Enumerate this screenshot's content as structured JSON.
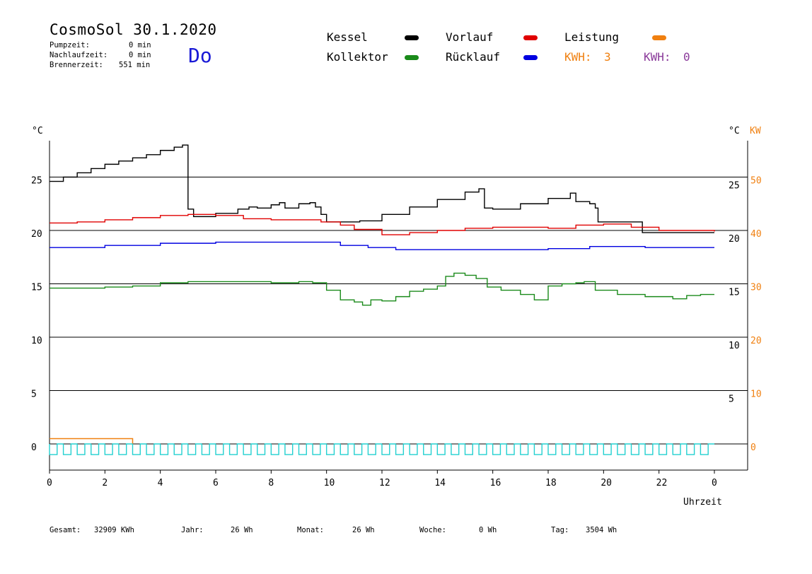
{
  "header": {
    "title": "CosmoSol 30.1.2020",
    "pump_label": "Pumpzeit:",
    "pump_value": "0 min",
    "nachlauf_label": "Nachlaufzeit:",
    "nachlauf_value": "0 min",
    "brenner_label": "Brennerzeit:",
    "brenner_value": "551 min",
    "weekday": "Do"
  },
  "legend": {
    "kessel": "Kessel",
    "kollektor": "Kollektor",
    "vorlauf": "Vorlauf",
    "ruecklauf": "Rücklauf",
    "leistung": "Leistung",
    "kwh1_label": "KWH:",
    "kwh1_value": "3",
    "kwh2_label": "KWH:",
    "kwh2_value": "0",
    "colors": {
      "kessel": "#000000",
      "kollektor": "#1a8a1a",
      "vorlauf": "#e00000",
      "ruecklauf": "#0000e0",
      "leistung": "#f08010",
      "kwh2": "#8a3a9a",
      "pump": "#22d0d0"
    }
  },
  "footer": {
    "gesamt_label": "Gesamt:",
    "gesamt_value": "32909 KWh",
    "jahr_label": "Jahr:",
    "jahr_value": "26 Wh",
    "monat_label": "Monat:",
    "monat_value": "26 Wh",
    "woche_label": "Woche:",
    "woche_value": "0 Wh",
    "tag_label": "Tag:",
    "tag_value": "3504 Wh"
  },
  "chart_data": {
    "type": "line",
    "ylabel_left": "°C",
    "ylabel_right": "°C",
    "ylabel_right2": "KW",
    "xlabel": "Uhrzeit",
    "xlim": [
      0,
      24
    ],
    "ylim": [
      -2,
      30
    ],
    "x_ticks": [
      "0",
      "2",
      "4",
      "6",
      "8",
      "10",
      "12",
      "14",
      "16",
      "18",
      "20",
      "22",
      "0"
    ],
    "y_ticks_left": [
      0,
      5,
      10,
      15,
      20,
      25
    ],
    "y_ticks_right": [
      5,
      10,
      15,
      20,
      25
    ],
    "kw_ticks": [
      0,
      10,
      20,
      30,
      40,
      50
    ],
    "grid": "horizontal",
    "series": [
      {
        "name": "Kessel",
        "color": "#000000",
        "points": [
          [
            0,
            24.6
          ],
          [
            0.5,
            25.0
          ],
          [
            1,
            25.4
          ],
          [
            1.5,
            25.8
          ],
          [
            2,
            26.2
          ],
          [
            2.5,
            26.5
          ],
          [
            3,
            26.8
          ],
          [
            3.5,
            27.1
          ],
          [
            4,
            27.5
          ],
          [
            4.5,
            27.8
          ],
          [
            4.8,
            28.0
          ],
          [
            5.0,
            22.0
          ],
          [
            5.2,
            21.3
          ],
          [
            6,
            21.6
          ],
          [
            6.8,
            22.0
          ],
          [
            7.2,
            22.2
          ],
          [
            7.5,
            22.1
          ],
          [
            8,
            22.4
          ],
          [
            8.3,
            22.6
          ],
          [
            8.5,
            22.1
          ],
          [
            9,
            22.5
          ],
          [
            9.4,
            22.6
          ],
          [
            9.6,
            22.2
          ],
          [
            9.8,
            21.5
          ],
          [
            10,
            20.8
          ],
          [
            11,
            20.8
          ],
          [
            11.2,
            20.9
          ],
          [
            12,
            21.5
          ],
          [
            13,
            22.2
          ],
          [
            14,
            22.9
          ],
          [
            15,
            23.6
          ],
          [
            15.5,
            23.9
          ],
          [
            15.7,
            22.1
          ],
          [
            16,
            22.0
          ],
          [
            17,
            22.5
          ],
          [
            18,
            23.0
          ],
          [
            18.8,
            23.5
          ],
          [
            19.0,
            22.7
          ],
          [
            19.5,
            22.5
          ],
          [
            19.7,
            22.1
          ],
          [
            19.8,
            20.8
          ],
          [
            21.2,
            20.8
          ],
          [
            21.4,
            19.8
          ],
          [
            24,
            19.8
          ]
        ]
      },
      {
        "name": "Vorlauf",
        "color": "#e00000",
        "points": [
          [
            0,
            20.7
          ],
          [
            1,
            20.8
          ],
          [
            2,
            21.0
          ],
          [
            3,
            21.2
          ],
          [
            4,
            21.4
          ],
          [
            5,
            21.5
          ],
          [
            6,
            21.4
          ],
          [
            7,
            21.1
          ],
          [
            8,
            21.0
          ],
          [
            9,
            21.0
          ],
          [
            9.8,
            20.8
          ],
          [
            10.5,
            20.5
          ],
          [
            11,
            20.1
          ],
          [
            12,
            19.6
          ],
          [
            13,
            19.8
          ],
          [
            14,
            20.0
          ],
          [
            15,
            20.2
          ],
          [
            16,
            20.3
          ],
          [
            17,
            20.3
          ],
          [
            18,
            20.2
          ],
          [
            19,
            20.5
          ],
          [
            20,
            20.6
          ],
          [
            21,
            20.3
          ],
          [
            22,
            20.0
          ],
          [
            24,
            19.9
          ]
        ]
      },
      {
        "name": "Rücklauf",
        "color": "#0000e0",
        "points": [
          [
            0,
            18.4
          ],
          [
            2,
            18.6
          ],
          [
            4,
            18.8
          ],
          [
            6,
            18.9
          ],
          [
            8,
            18.9
          ],
          [
            9.5,
            18.9
          ],
          [
            10.5,
            18.6
          ],
          [
            11.5,
            18.4
          ],
          [
            12.5,
            18.2
          ],
          [
            14,
            18.2
          ],
          [
            16,
            18.2
          ],
          [
            18,
            18.3
          ],
          [
            19.5,
            18.5
          ],
          [
            20.5,
            18.5
          ],
          [
            21.5,
            18.4
          ],
          [
            24,
            18.4
          ]
        ]
      },
      {
        "name": "Kollektor",
        "color": "#1a8a1a",
        "points": [
          [
            0,
            14.6
          ],
          [
            1,
            14.6
          ],
          [
            2,
            14.7
          ],
          [
            3,
            14.8
          ],
          [
            4,
            15.1
          ],
          [
            5,
            15.2
          ],
          [
            6,
            15.2
          ],
          [
            7,
            15.2
          ],
          [
            8,
            15.1
          ],
          [
            9,
            15.2
          ],
          [
            9.5,
            15.1
          ],
          [
            10,
            14.4
          ],
          [
            10.5,
            13.5
          ],
          [
            11,
            13.3
          ],
          [
            11.3,
            13.0
          ],
          [
            11.6,
            13.5
          ],
          [
            12,
            13.4
          ],
          [
            12.5,
            13.8
          ],
          [
            13,
            14.3
          ],
          [
            13.5,
            14.5
          ],
          [
            14,
            14.8
          ],
          [
            14.3,
            15.7
          ],
          [
            14.6,
            16.0
          ],
          [
            15,
            15.8
          ],
          [
            15.4,
            15.5
          ],
          [
            15.8,
            14.7
          ],
          [
            16.3,
            14.4
          ],
          [
            17,
            14.0
          ],
          [
            17.5,
            13.5
          ],
          [
            18,
            14.8
          ],
          [
            18.5,
            15.0
          ],
          [
            19,
            15.1
          ],
          [
            19.3,
            15.2
          ],
          [
            19.7,
            14.4
          ],
          [
            20.5,
            14.0
          ],
          [
            21.5,
            13.8
          ],
          [
            22.5,
            13.6
          ],
          [
            23,
            13.9
          ],
          [
            23.5,
            14.0
          ],
          [
            24,
            14.0
          ]
        ]
      }
    ],
    "leistung": {
      "name": "Leistung",
      "color": "#f08010",
      "level_kw": 1,
      "start_h": 0,
      "end_h": 3
    },
    "pump_cycles": {
      "color": "#22d0d0",
      "count": 48,
      "high": 0,
      "low": -1
    }
  }
}
